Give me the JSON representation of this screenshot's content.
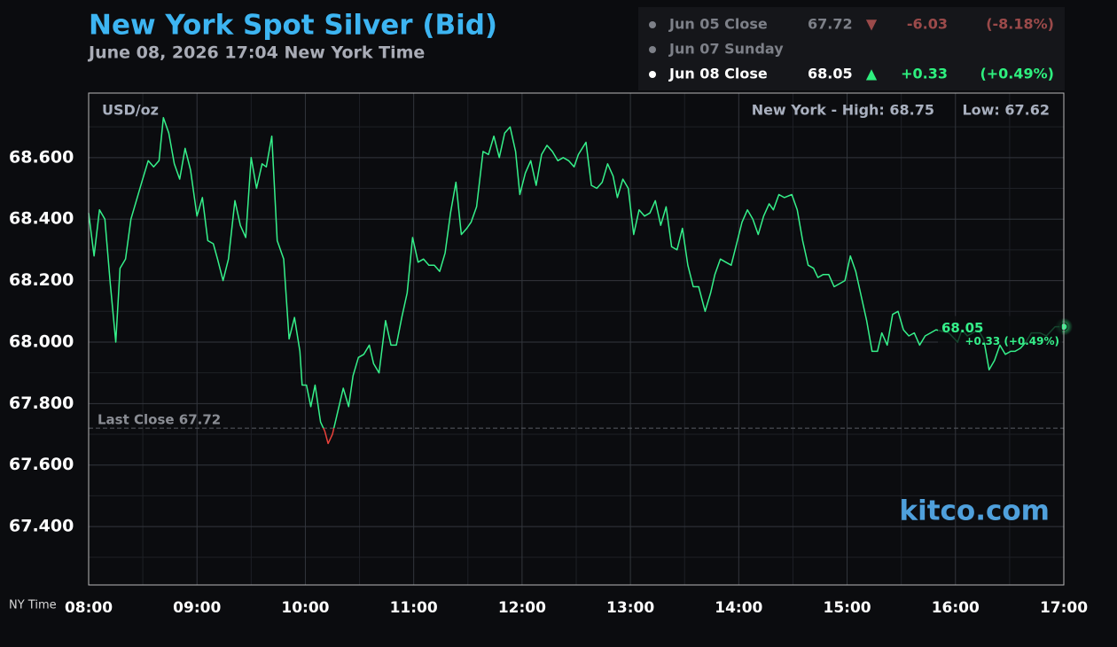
{
  "quote_table": {
    "rows": [
      [
        "Jun 05 Close",
        "67.72",
        "▼",
        "-6.03",
        "(-8.18%)"
      ],
      [
        "Jun 07 Sunday"
      ],
      [
        "Jun 08 Close",
        "68.05",
        "▲",
        "+0.33",
        "(+0.49%)"
      ]
    ]
  },
  "chart_data": {
    "type": "line",
    "title": "New York Spot Silver (Bid)",
    "subtitle": "June 08, 2026 17:04 New York Time",
    "unit_label": "USD/oz",
    "high_label": "New York - High: 68.75",
    "low_label": "Low: 67.62",
    "watermark": "kitco.com",
    "x_axis_title": "NY Time",
    "last_change": "+0.33 (+0.49%)",
    "reference": {
      "label": "Last Close 67.72",
      "value": 67.72,
      "color_below": "#e8413a"
    },
    "x": [
      8.0,
      8.05,
      8.1,
      8.15,
      8.2,
      8.25,
      8.29,
      8.34,
      8.39,
      8.44,
      8.49,
      8.55,
      8.6,
      8.65,
      8.69,
      8.74,
      8.79,
      8.84,
      8.89,
      8.94,
      9.0,
      9.05,
      9.1,
      9.15,
      9.19,
      9.24,
      9.29,
      9.35,
      9.4,
      9.45,
      9.5,
      9.55,
      9.6,
      9.64,
      9.69,
      9.74,
      9.8,
      9.85,
      9.9,
      9.95,
      9.97,
      10.01,
      10.05,
      10.09,
      10.14,
      10.18,
      10.21,
      10.25,
      10.29,
      10.35,
      10.4,
      10.44,
      10.49,
      10.54,
      10.59,
      10.63,
      10.68,
      10.74,
      10.79,
      10.84,
      10.89,
      10.94,
      10.99,
      11.04,
      11.09,
      11.14,
      11.19,
      11.24,
      11.29,
      11.34,
      11.39,
      11.44,
      11.49,
      11.53,
      11.58,
      11.64,
      11.69,
      11.74,
      11.79,
      11.84,
      11.89,
      11.94,
      11.98,
      12.03,
      12.08,
      12.13,
      12.18,
      12.23,
      12.28,
      12.33,
      12.38,
      12.43,
      12.48,
      12.52,
      12.59,
      12.64,
      12.69,
      12.74,
      12.79,
      12.84,
      12.88,
      12.93,
      12.98,
      13.03,
      13.08,
      13.13,
      13.18,
      13.23,
      13.28,
      13.33,
      13.38,
      13.43,
      13.48,
      13.53,
      13.58,
      13.63,
      13.69,
      13.74,
      13.78,
      13.83,
      13.88,
      13.93,
      13.98,
      14.03,
      14.08,
      14.13,
      14.18,
      14.23,
      14.28,
      14.32,
      14.37,
      14.42,
      14.49,
      14.54,
      14.59,
      14.64,
      14.69,
      14.73,
      14.78,
      14.83,
      14.88,
      14.93,
      14.98,
      15.03,
      15.08,
      15.13,
      15.18,
      15.23,
      15.28,
      15.32,
      15.37,
      15.42,
      15.47,
      15.52,
      15.57,
      15.62,
      15.67,
      15.72,
      15.77,
      15.82,
      15.94,
      16.02,
      16.06,
      16.11,
      16.16,
      16.21,
      16.26,
      16.31,
      16.36,
      16.41,
      16.46,
      16.51,
      16.55,
      16.6,
      16.65,
      16.7,
      16.78,
      16.84,
      16.92,
      17.0
    ],
    "series": [
      {
        "color": "#35f08a",
        "values": [
          68.42,
          68.28,
          68.43,
          68.4,
          68.19,
          68.0,
          68.24,
          68.27,
          68.4,
          68.46,
          68.52,
          68.59,
          68.57,
          68.59,
          68.73,
          68.68,
          68.58,
          68.53,
          68.63,
          68.56,
          68.41,
          68.47,
          68.33,
          68.32,
          68.27,
          68.2,
          68.27,
          68.46,
          68.38,
          68.34,
          68.6,
          68.5,
          68.58,
          68.57,
          68.67,
          68.33,
          68.27,
          68.01,
          68.08,
          67.97,
          67.86,
          67.86,
          67.79,
          67.86,
          67.74,
          67.71,
          67.67,
          67.7,
          67.76,
          67.85,
          67.79,
          67.89,
          67.95,
          67.96,
          67.99,
          67.93,
          67.9,
          68.07,
          67.99,
          67.99,
          68.08,
          68.16,
          68.34,
          68.26,
          68.27,
          68.25,
          68.25,
          68.23,
          68.29,
          68.42,
          68.52,
          68.35,
          68.37,
          68.39,
          68.44,
          68.62,
          68.61,
          68.67,
          68.6,
          68.68,
          68.7,
          68.62,
          68.48,
          68.55,
          68.59,
          68.51,
          68.61,
          68.64,
          68.62,
          68.59,
          68.6,
          68.59,
          68.57,
          68.61,
          68.65,
          68.51,
          68.5,
          68.52,
          68.58,
          68.54,
          68.47,
          68.53,
          68.5,
          68.35,
          68.43,
          68.41,
          68.42,
          68.46,
          68.38,
          68.44,
          68.31,
          68.3,
          68.37,
          68.25,
          68.18,
          68.18,
          68.1,
          68.16,
          68.22,
          68.27,
          68.26,
          68.25,
          68.32,
          68.39,
          68.43,
          68.4,
          68.35,
          68.41,
          68.45,
          68.43,
          68.48,
          68.47,
          68.48,
          68.43,
          68.33,
          68.25,
          68.24,
          68.21,
          68.22,
          68.22,
          68.18,
          68.19,
          68.2,
          68.28,
          68.23,
          68.15,
          68.07,
          67.97,
          67.97,
          68.03,
          67.99,
          68.09,
          68.1,
          68.04,
          68.02,
          68.03,
          67.99,
          68.02,
          68.03,
          68.04,
          68.03,
          68.0,
          68.04,
          68.02,
          68.03,
          68.04,
          68.01,
          67.91,
          67.94,
          67.99,
          67.96,
          67.97,
          67.97,
          67.98,
          68.0,
          68.03,
          68.03,
          68.02,
          68.05,
          68.05
        ]
      }
    ],
    "xlim": [
      8,
      17
    ],
    "xticks": [
      {
        "value": 8,
        "label": "08:00"
      },
      {
        "value": 9,
        "label": "09:00"
      },
      {
        "value": 10,
        "label": "10:00"
      },
      {
        "value": 11,
        "label": "11:00"
      },
      {
        "value": 12,
        "label": "12:00"
      },
      {
        "value": 13,
        "label": "13:00"
      },
      {
        "value": 14,
        "label": "14:00"
      },
      {
        "value": 15,
        "label": "15:00"
      },
      {
        "value": 16,
        "label": "16:00"
      },
      {
        "value": 17,
        "label": "17:00"
      }
    ],
    "xminorticks": [
      8.5,
      9.5,
      10.5,
      11.5,
      12.5,
      13.5,
      14.5,
      15.5,
      16.5
    ],
    "ylim": [
      67.21,
      68.81
    ],
    "yticks": [
      {
        "value": 67.4,
        "label": "67.400"
      },
      {
        "value": 67.6,
        "label": "67.600"
      },
      {
        "value": 67.8,
        "label": "67.800"
      },
      {
        "value": 68.0,
        "label": "68.000"
      },
      {
        "value": 68.2,
        "label": "68.200"
      },
      {
        "value": 68.4,
        "label": "68.400"
      },
      {
        "value": 68.6,
        "label": "68.600"
      }
    ],
    "yminorticks": [
      67.3,
      67.5,
      67.7,
      67.9,
      68.1,
      68.3,
      68.5,
      68.7
    ],
    "grid": true
  }
}
